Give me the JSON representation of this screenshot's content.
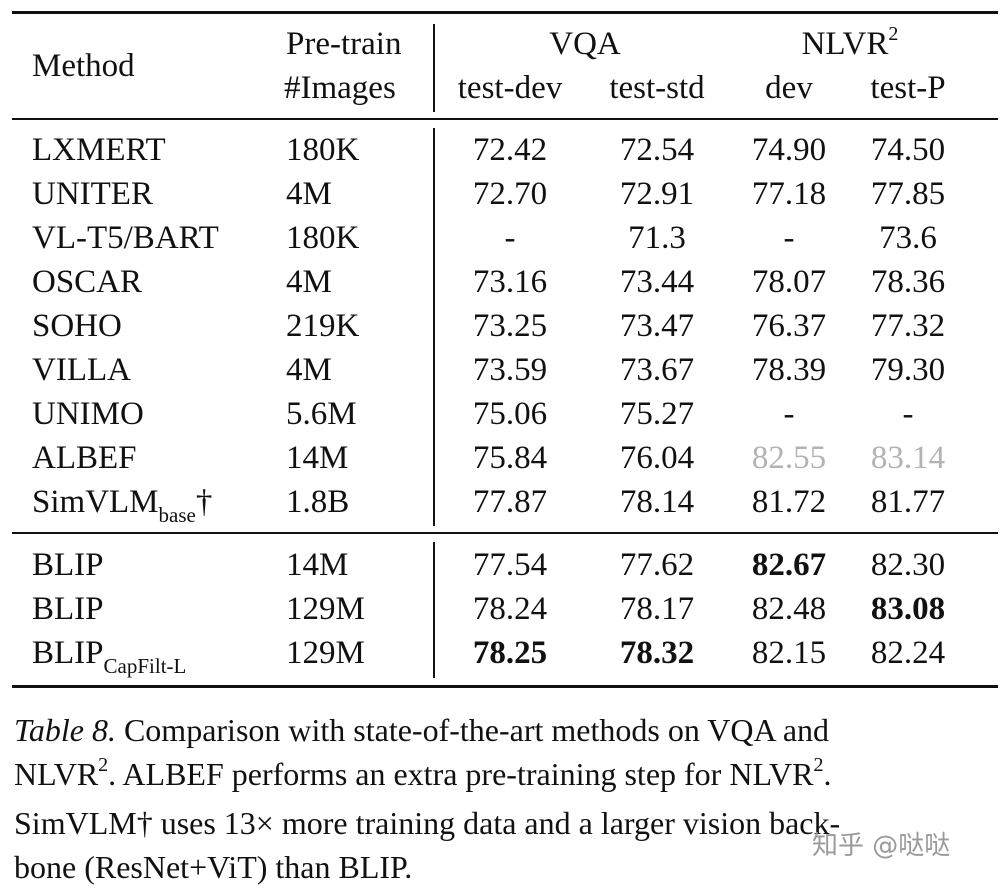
{
  "table": {
    "headers": {
      "method": "Method",
      "pretrain_line1": "Pre-train",
      "pretrain_line2": "#Images",
      "vqa_group": "VQA",
      "nlvr_group": "NLVR",
      "nlvr_sup": "2",
      "vqa_test_dev": "test-dev",
      "vqa_test_std": "test-std",
      "nlvr_dev": "dev",
      "nlvr_test_p": "test-P"
    },
    "rows": [
      {
        "method": "LXMERT",
        "images": "180K",
        "vqa_dev": "72.42",
        "vqa_std": "72.54",
        "nlvr_dev": "74.90",
        "nlvr_test": "74.50"
      },
      {
        "method": "UNITER",
        "images": "4M",
        "vqa_dev": "72.70",
        "vqa_std": "72.91",
        "nlvr_dev": "77.18",
        "nlvr_test": "77.85"
      },
      {
        "method": "VL-T5/BART",
        "images": "180K",
        "vqa_dev": "-",
        "vqa_std": "71.3",
        "nlvr_dev": "-",
        "nlvr_test": "73.6"
      },
      {
        "method": "OSCAR",
        "images": "4M",
        "vqa_dev": "73.16",
        "vqa_std": "73.44",
        "nlvr_dev": "78.07",
        "nlvr_test": "78.36"
      },
      {
        "method": "SOHO",
        "images": "219K",
        "vqa_dev": "73.25",
        "vqa_std": "73.47",
        "nlvr_dev": "76.37",
        "nlvr_test": "77.32"
      },
      {
        "method": "VILLA",
        "images": "4M",
        "vqa_dev": "73.59",
        "vqa_std": "73.67",
        "nlvr_dev": "78.39",
        "nlvr_test": "79.30"
      },
      {
        "method": "UNIMO",
        "images": "5.6M",
        "vqa_dev": "75.06",
        "vqa_std": "75.27",
        "nlvr_dev": "-",
        "nlvr_test": "-"
      },
      {
        "method": "ALBEF",
        "images": "14M",
        "vqa_dev": "75.84",
        "vqa_std": "76.04",
        "nlvr_dev": "82.55",
        "nlvr_test": "83.14",
        "nlvr_gray": true
      },
      {
        "method": "SimVLM",
        "method_sub": "base",
        "method_suffix": "†",
        "images": "1.8B",
        "vqa_dev": "77.87",
        "vqa_std": "78.14",
        "nlvr_dev": "81.72",
        "nlvr_test": "81.77"
      },
      {
        "method": "BLIP",
        "images": "14M",
        "vqa_dev": "77.54",
        "vqa_std": "77.62",
        "nlvr_dev": "82.67",
        "nlvr_test": "82.30",
        "bold": [
          "nlvr_dev"
        ]
      },
      {
        "method": "BLIP",
        "images": "129M",
        "vqa_dev": "78.24",
        "vqa_std": "78.17",
        "nlvr_dev": "82.48",
        "nlvr_test": "83.08",
        "bold": [
          "nlvr_test"
        ]
      },
      {
        "method": "BLIP",
        "method_sub": "CapFilt-L",
        "images": "129M",
        "vqa_dev": "78.25",
        "vqa_std": "78.32",
        "nlvr_dev": "82.15",
        "nlvr_test": "82.24",
        "bold": [
          "vqa_dev",
          "vqa_std"
        ]
      }
    ]
  },
  "caption": {
    "label": "Table 8.",
    "line1": " Comparison with state-of-the-art methods on VQA and",
    "line2a": "NLVR",
    "line2_sup": "2",
    "line2b": ". ALBEF performs an extra pre-training step for NLVR",
    "line2_sup2": "2",
    "line2c": ".",
    "line3": "SimVLM† uses 13× more training data and a larger vision back-",
    "line4": "bone (ResNet+ViT) than BLIP."
  },
  "watermark": "知乎 @哒哒"
}
